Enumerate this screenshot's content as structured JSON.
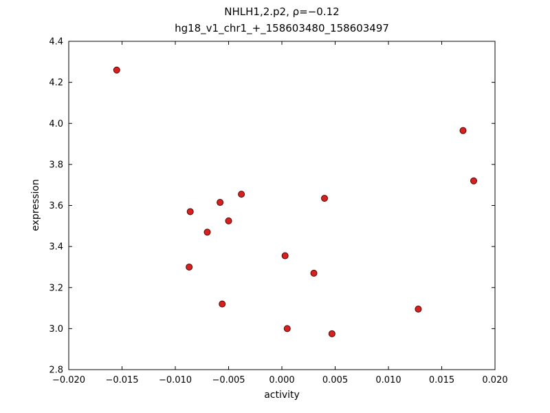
{
  "chart_data": {
    "type": "scatter",
    "title": "NHLH1,2.p2, ρ=−0.12",
    "subtitle": "hg18_v1_chr1_+_158603480_158603497",
    "xlabel": "activity",
    "ylabel": "expression",
    "xlim": [
      -0.02,
      0.02
    ],
    "ylim": [
      2.8,
      4.4
    ],
    "x_ticks": [
      -0.02,
      -0.015,
      -0.01,
      -0.005,
      0.0,
      0.005,
      0.01,
      0.015,
      0.02
    ],
    "x_tick_labels": [
      "−0.020",
      "−0.015",
      "−0.010",
      "−0.005",
      "0.000",
      "0.005",
      "0.010",
      "0.015",
      "0.020"
    ],
    "y_ticks": [
      2.8,
      3.0,
      3.2,
      3.4,
      3.6,
      3.8,
      4.0,
      4.2,
      4.4
    ],
    "y_tick_labels": [
      "2.8",
      "3.0",
      "3.2",
      "3.4",
      "3.6",
      "3.8",
      "4.0",
      "4.2",
      "4.4"
    ],
    "grid": false,
    "legend": "none",
    "marker": {
      "shape": "circle",
      "fill": "#d62121",
      "edge": "#5a0000",
      "radius": 4.5
    },
    "points": [
      [
        -0.0155,
        4.26
      ],
      [
        0.017,
        3.965
      ],
      [
        0.018,
        3.72
      ],
      [
        -0.0038,
        3.655
      ],
      [
        -0.0058,
        3.615
      ],
      [
        -0.0086,
        3.57
      ],
      [
        -0.005,
        3.525
      ],
      [
        -0.007,
        3.47
      ],
      [
        0.004,
        3.635
      ],
      [
        0.0003,
        3.355
      ],
      [
        -0.0087,
        3.3
      ],
      [
        0.003,
        3.27
      ],
      [
        -0.0056,
        3.12
      ],
      [
        0.0128,
        3.095
      ],
      [
        0.0005,
        3.0
      ],
      [
        0.0047,
        2.975
      ]
    ]
  }
}
